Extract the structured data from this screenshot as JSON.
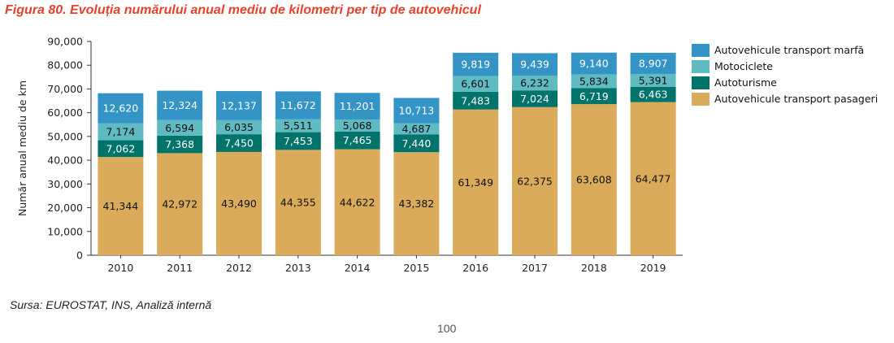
{
  "figure_title": "Figura 80. Evoluția numărului anual mediu de kilometri per tip de autovehicul",
  "source_note": "Sursa: EUROSTAT, INS, Analiză internă",
  "page_number": "100",
  "colors": {
    "title": "#e8412b",
    "pasageri": "#d9ab5b",
    "autoturisme": "#00746b",
    "motociclete": "#5fbac2",
    "marfa": "#3494c5",
    "axis": "#333333"
  },
  "chart_data": {
    "type": "bar",
    "stacked": true,
    "title": "",
    "xlabel": "",
    "ylabel": "Număr anual mediu de km",
    "ylim": [
      0,
      90000
    ],
    "ytick_labels": [
      "0",
      "10,000",
      "20,000",
      "30,000",
      "40,000",
      "50,000",
      "60,000",
      "70,000",
      "80,000",
      "90,000"
    ],
    "categories": [
      "2010",
      "2011",
      "2012",
      "2013",
      "2014",
      "2015",
      "2016",
      "2017",
      "2018",
      "2019"
    ],
    "grid": false,
    "legend_position": "right",
    "series": [
      {
        "name": "Autovehicule transport pasageri",
        "color": "#d9ab5b",
        "values": [
          41344,
          42972,
          43490,
          44355,
          44622,
          43382,
          61349,
          62375,
          63608,
          64477
        ],
        "labels": [
          "41,344",
          "42,972",
          "43,490",
          "44,355",
          "44,622",
          "43,382",
          "61,349",
          "62,375",
          "63,608",
          "64,477"
        ]
      },
      {
        "name": "Autoturisme",
        "color": "#00746b",
        "values": [
          7062,
          7368,
          7450,
          7453,
          7465,
          7440,
          7483,
          7024,
          6719,
          6463
        ],
        "labels": [
          "7,062",
          "7,368",
          "7,450",
          "7,453",
          "7,465",
          "7,440",
          "7,483",
          "7,024",
          "6,719",
          "6,463"
        ]
      },
      {
        "name": "Motociclete",
        "color": "#5fbac2",
        "values": [
          7174,
          6594,
          6035,
          5511,
          5068,
          4687,
          6601,
          6232,
          5834,
          5391
        ],
        "labels": [
          "7,174",
          "6,594",
          "6,035",
          "5,511",
          "5,068",
          "4,687",
          "6,601",
          "6,232",
          "5,834",
          "5,391"
        ]
      },
      {
        "name": "Autovehicule transport marfă",
        "color": "#3494c5",
        "values": [
          12620,
          12324,
          12137,
          11672,
          11201,
          10713,
          9819,
          9439,
          9140,
          8907
        ],
        "labels": [
          "12,620",
          "12,324",
          "12,137",
          "11,672",
          "11,201",
          "10,713",
          "9,819",
          "9,439",
          "9,140",
          "8,907"
        ]
      }
    ],
    "legend_order": [
      "Autovehicule transport marfă",
      "Motociclete",
      "Autoturisme",
      "Autovehicule transport pasageri"
    ]
  }
}
